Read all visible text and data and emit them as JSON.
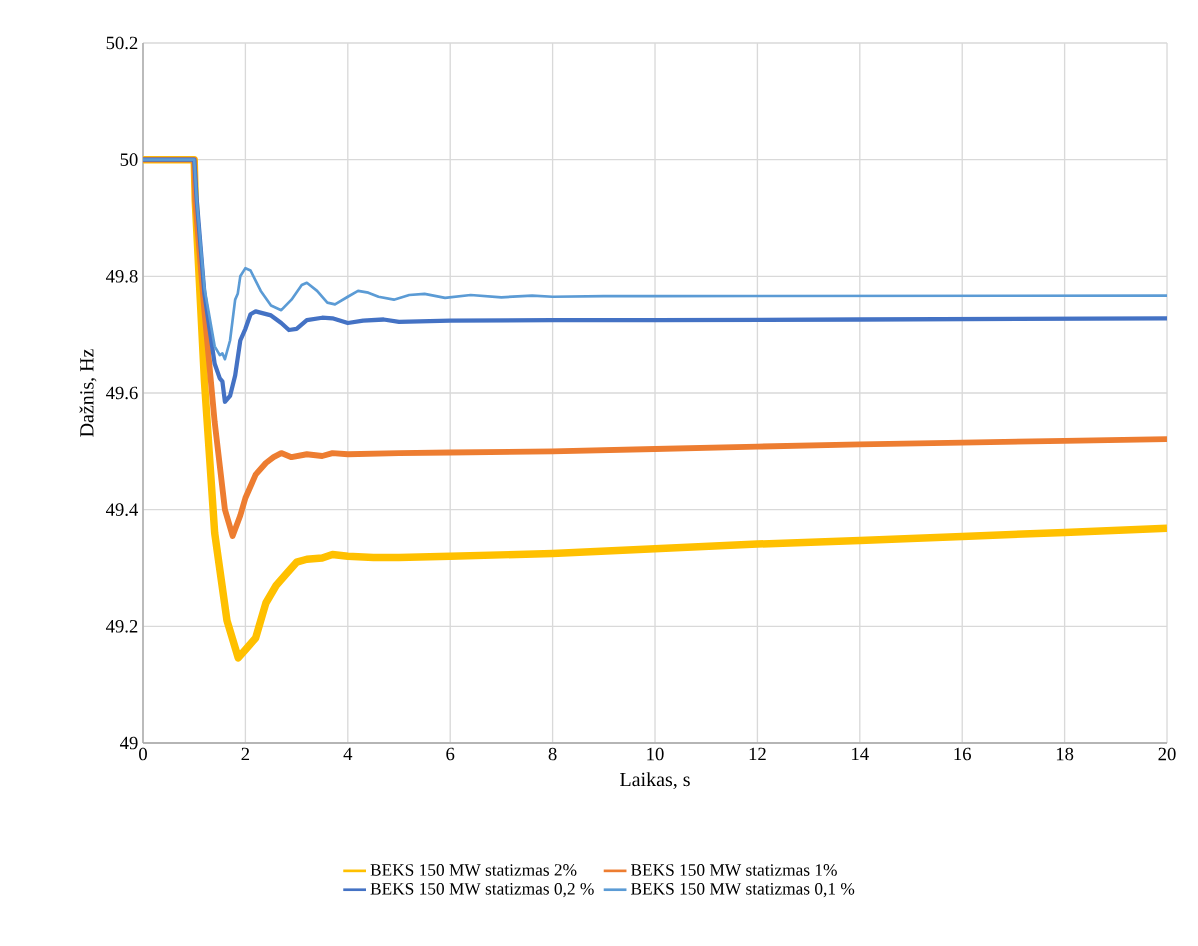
{
  "chart_data": {
    "type": "line",
    "xlabel": "Laikas, s",
    "ylabel": "Dažnis, Hz",
    "xlim": [
      0,
      20
    ],
    "ylim": [
      49,
      50.2
    ],
    "xticks": [
      0,
      2,
      4,
      6,
      8,
      10,
      12,
      14,
      16,
      18,
      20
    ],
    "yticks": [
      49,
      49.2,
      49.4,
      49.6,
      49.8,
      50,
      50.2
    ],
    "grid": true,
    "legend": "bottom",
    "series": [
      {
        "name": "BEKS 150 MW statizmas 2%",
        "color": "#ffc000",
        "x": [
          0,
          1,
          1.02,
          1.2,
          1.4,
          1.64,
          1.86,
          2.0,
          2.2,
          2.4,
          2.6,
          2.8,
          3.0,
          3.2,
          3.5,
          3.7,
          4,
          4.5,
          5,
          6,
          8,
          10,
          12,
          14,
          16,
          18,
          20
        ],
        "values": [
          50,
          50,
          49.93,
          49.62,
          49.36,
          49.21,
          49.146,
          49.16,
          49.18,
          49.24,
          49.27,
          49.29,
          49.31,
          49.315,
          49.317,
          49.323,
          49.32,
          49.318,
          49.318,
          49.32,
          49.325,
          49.333,
          49.341,
          49.347,
          49.354,
          49.361,
          49.368
        ]
      },
      {
        "name": "BEKS 150 MW statizmas 1%",
        "color": "#ed7d31",
        "x": [
          0,
          1,
          1.02,
          1.2,
          1.4,
          1.6,
          1.75,
          1.9,
          2.0,
          2.2,
          2.4,
          2.55,
          2.7,
          2.9,
          3.2,
          3.5,
          3.7,
          4,
          5,
          6,
          8,
          10,
          12,
          14,
          16,
          18,
          20
        ],
        "values": [
          50,
          50,
          49.93,
          49.74,
          49.55,
          49.4,
          49.355,
          49.39,
          49.42,
          49.46,
          49.48,
          49.49,
          49.497,
          49.49,
          49.495,
          49.492,
          49.497,
          49.495,
          49.497,
          49.498,
          49.5,
          49.504,
          49.508,
          49.512,
          49.515,
          49.518,
          49.521
        ]
      },
      {
        "name": "BEKS 150 MW statizmas 0,2 %",
        "color": "#4472c4",
        "x": [
          0,
          1,
          1.05,
          1.2,
          1.4,
          1.5,
          1.55,
          1.6,
          1.7,
          1.8,
          1.9,
          2.0,
          2.1,
          2.2,
          2.5,
          2.7,
          2.85,
          3.0,
          3.2,
          3.5,
          3.7,
          4.0,
          4.3,
          4.7,
          5.0,
          6,
          8,
          10,
          14,
          20
        ],
        "values": [
          50,
          50,
          49.93,
          49.77,
          49.65,
          49.625,
          49.62,
          49.585,
          49.595,
          49.63,
          49.69,
          49.71,
          49.735,
          49.74,
          49.733,
          49.72,
          49.708,
          49.71,
          49.725,
          49.729,
          49.728,
          49.72,
          49.724,
          49.726,
          49.722,
          49.724,
          49.725,
          49.725,
          49.726,
          49.728
        ]
      },
      {
        "name": "BEKS 150 MW statizmas 0,1 %",
        "color": "#5b9bd5",
        "x": [
          0,
          1,
          1.05,
          1.2,
          1.4,
          1.5,
          1.55,
          1.6,
          1.7,
          1.8,
          1.85,
          1.9,
          2.0,
          2.1,
          2.3,
          2.5,
          2.7,
          2.9,
          3.1,
          3.2,
          3.4,
          3.6,
          3.75,
          4.0,
          4.2,
          4.4,
          4.6,
          4.9,
          5.2,
          5.5,
          5.9,
          6.4,
          7,
          7.6,
          8,
          9,
          10,
          20
        ],
        "values": [
          50,
          50,
          49.93,
          49.78,
          49.68,
          49.665,
          49.668,
          49.658,
          49.69,
          49.76,
          49.77,
          49.8,
          49.814,
          49.81,
          49.775,
          49.75,
          49.742,
          49.76,
          49.785,
          49.789,
          49.775,
          49.755,
          49.752,
          49.765,
          49.775,
          49.772,
          49.765,
          49.76,
          49.768,
          49.77,
          49.763,
          49.768,
          49.764,
          49.767,
          49.765,
          49.766,
          49.766,
          49.767
        ]
      }
    ]
  }
}
